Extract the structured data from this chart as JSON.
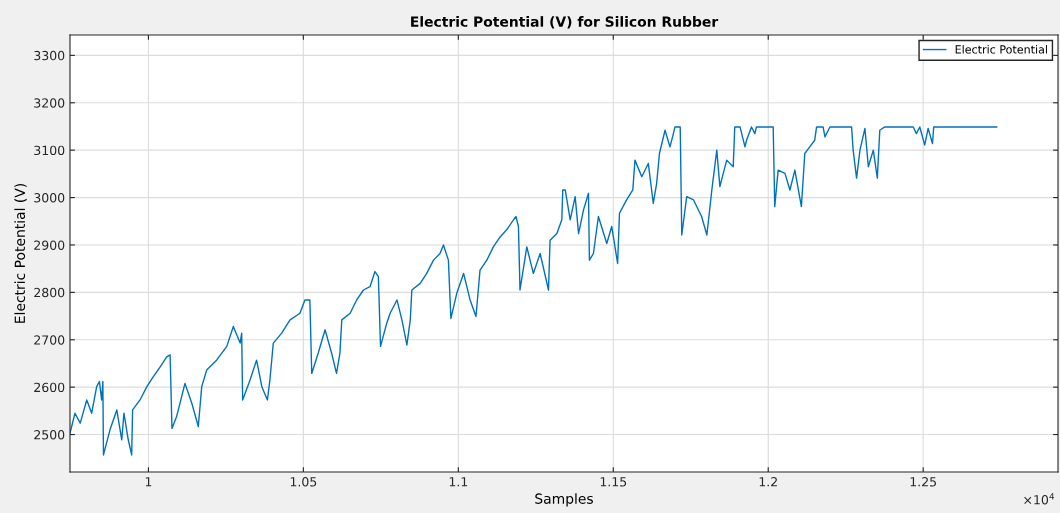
{
  "chart_data": {
    "type": "line",
    "title": "Electric Potential (V) for Silicon Rubber",
    "xlabel": "Samples",
    "ylabel": "Electric Potential (V)",
    "annotations": [
      "×10$^{4}$"
    ],
    "xlim": [
      0.9747,
      1.2935
    ],
    "ylim": [
      2421,
      3343
    ],
    "xticks": [
      1,
      1.05,
      1.1,
      1.15,
      1.2,
      1.25
    ],
    "yticks": [
      2500,
      2600,
      2700,
      2800,
      2900,
      3000,
      3100,
      3200,
      3300
    ],
    "grid": true,
    "legend": "top right",
    "line_style": "solid",
    "marker": "none",
    "series": [
      {
        "name": "Electric Potential",
        "color": "#0072bd",
        "x": [
          0.9747,
          0.9763,
          0.978,
          0.9801,
          0.9817,
          0.9833,
          0.9842,
          0.9849,
          0.9853,
          0.9855,
          0.9876,
          0.9898,
          0.9914,
          0.9921,
          0.9935,
          0.9946,
          0.9949,
          0.9973,
          0.9995,
          1.0016,
          1.0038,
          1.0059,
          1.007,
          1.0076,
          1.0091,
          1.0118,
          1.014,
          1.0161,
          1.0172,
          1.0188,
          1.022,
          1.0253,
          1.0274,
          1.0296,
          1.0301,
          1.0304,
          1.0328,
          1.0349,
          1.0366,
          1.0384,
          1.0392,
          1.0403,
          1.043,
          1.0457,
          1.0489,
          1.0505,
          1.0521,
          1.0527,
          1.0548,
          1.057,
          1.0591,
          1.0607,
          1.0618,
          1.0624,
          1.0651,
          1.0672,
          1.0694,
          1.0715,
          1.0731,
          1.0742,
          1.0749,
          1.0769,
          1.078,
          1.0802,
          1.0818,
          1.0834,
          1.0845,
          1.085,
          1.0877,
          1.0898,
          1.092,
          1.0941,
          1.0952,
          1.0968,
          1.0976,
          1.0995,
          1.1017,
          1.1038,
          1.1057,
          1.107,
          1.1092,
          1.1113,
          1.1135,
          1.1156,
          1.1178,
          1.1186,
          1.1194,
          1.1199,
          1.1221,
          1.1242,
          1.1264,
          1.1291,
          1.1296,
          1.1318,
          1.1334,
          1.1337,
          1.1345,
          1.1361,
          1.1377,
          1.1388,
          1.1404,
          1.142,
          1.1423,
          1.1436,
          1.1452,
          1.1479,
          1.1495,
          1.1514,
          1.152,
          1.1543,
          1.1563,
          1.157,
          1.1592,
          1.1613,
          1.1629,
          1.164,
          1.1649,
          1.1667,
          1.1683,
          1.1694,
          1.1699,
          1.1716,
          1.1721,
          1.1737,
          1.1759,
          1.1785,
          1.1802,
          1.1818,
          1.1834,
          1.1844,
          1.1866,
          1.1887,
          1.1892,
          1.1909,
          1.1925,
          1.193,
          1.1946,
          1.1957,
          1.1962,
          1.2016,
          1.2021,
          1.2032,
          1.2054,
          1.207,
          1.2086,
          1.2107,
          1.2118,
          1.2134,
          1.215,
          1.2156,
          1.2177,
          1.2183,
          1.2199,
          1.2269,
          1.2274,
          1.2285,
          1.2296,
          1.2312,
          1.2323,
          1.2339,
          1.2352,
          1.236,
          1.2376,
          1.2468,
          1.2478,
          1.2489,
          1.2505,
          1.2516,
          1.253,
          1.2534,
          1.2737
        ],
        "values": [
          2503,
          2545,
          2524,
          2573,
          2545,
          2601,
          2612,
          2573,
          2612,
          2457,
          2510,
          2552,
          2489,
          2545,
          2489,
          2457,
          2552,
          2573,
          2601,
          2622,
          2643,
          2664,
          2668,
          2513,
          2538,
          2608,
          2566,
          2517,
          2601,
          2636,
          2657,
          2686,
          2728,
          2693,
          2714,
          2573,
          2615,
          2657,
          2601,
          2573,
          2615,
          2693,
          2714,
          2742,
          2756,
          2784,
          2784,
          2629,
          2672,
          2721,
          2672,
          2629,
          2672,
          2742,
          2756,
          2784,
          2805,
          2812,
          2844,
          2833,
          2686,
          2735,
          2756,
          2784,
          2742,
          2689,
          2742,
          2805,
          2819,
          2840,
          2868,
          2882,
          2900,
          2868,
          2745,
          2798,
          2840,
          2784,
          2749,
          2847,
          2868,
          2896,
          2917,
          2932,
          2953,
          2960,
          2939,
          2805,
          2896,
          2840,
          2882,
          2805,
          2910,
          2924,
          2953,
          3016,
          3016,
          2953,
          3002,
          2924,
          2974,
          3009,
          2868,
          2882,
          2960,
          2903,
          2939,
          2861,
          2967,
          2995,
          3016,
          3079,
          3044,
          3072,
          2988,
          3030,
          3093,
          3142,
          3107,
          3135,
          3149,
          3149,
          2921,
          3002,
          2995,
          2960,
          2921,
          3016,
          3100,
          3023,
          3079,
          3065,
          3149,
          3149,
          3107,
          3121,
          3149,
          3135,
          3149,
          3149,
          2981,
          3058,
          3051,
          3016,
          3058,
          2981,
          3093,
          3107,
          3121,
          3149,
          3149,
          3128,
          3149,
          3149,
          3100,
          3041,
          3100,
          3146,
          3065,
          3100,
          3041,
          3142,
          3149,
          3149,
          3135,
          3149,
          3111,
          3146,
          3114,
          3149,
          3149
        ]
      }
    ]
  }
}
